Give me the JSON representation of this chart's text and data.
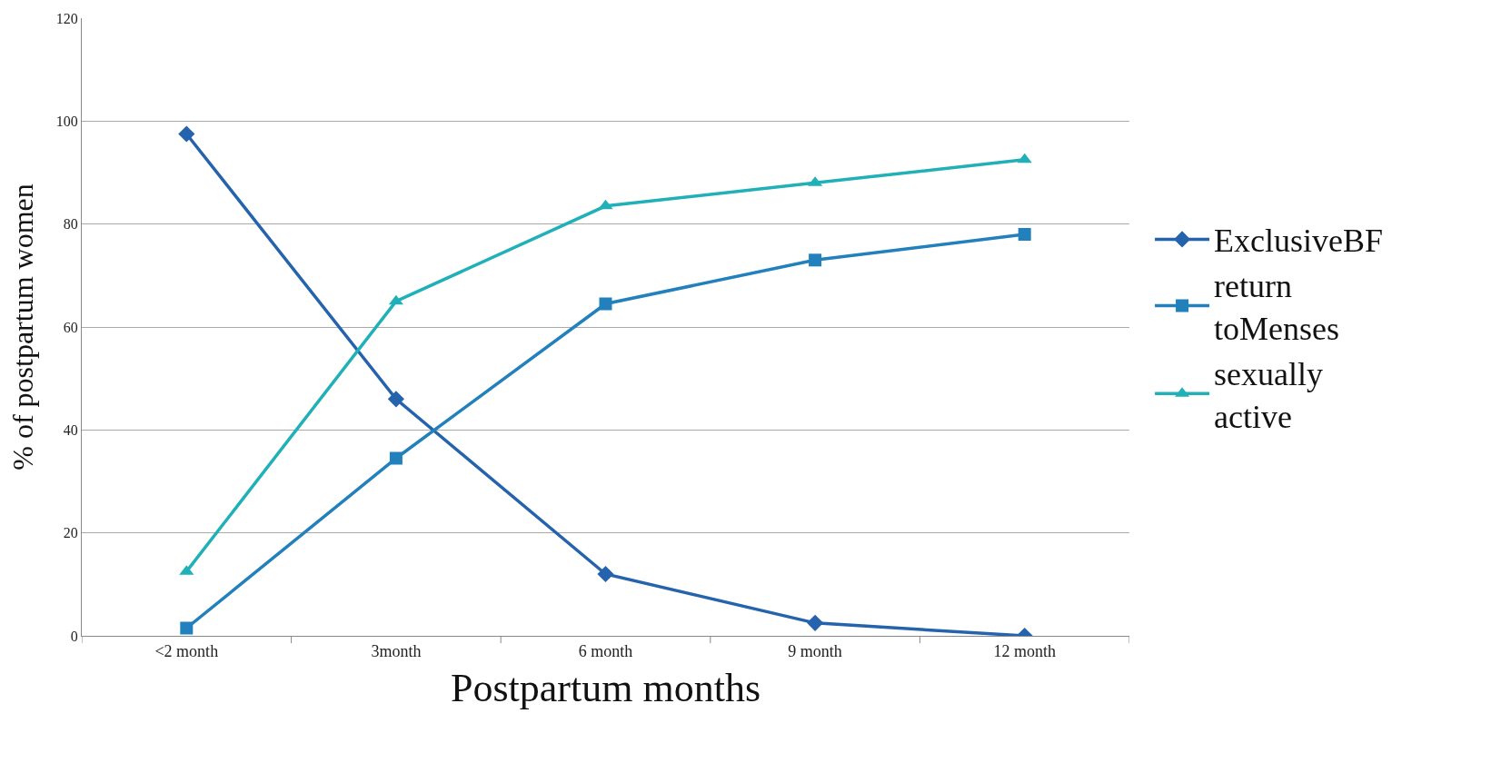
{
  "chart_data": {
    "type": "line",
    "xlabel": "Postpartum months",
    "ylabel": "% of postpartum women",
    "categories": [
      "<2 month",
      "3month",
      "6 month",
      "9 month",
      "12 month"
    ],
    "series": [
      {
        "name": "ExclusiveBF",
        "color": "#2563ad",
        "marker": "diamond",
        "values": [
          97.5,
          46,
          12,
          2.5,
          0
        ]
      },
      {
        "name": "return toMenses",
        "color": "#2280bd",
        "marker": "square",
        "values": [
          1.5,
          34.5,
          64.5,
          73,
          78
        ]
      },
      {
        "name": "sexually active",
        "color": "#20b0b8",
        "marker": "triangle",
        "values": [
          12.5,
          65,
          83.5,
          88,
          92.5
        ]
      }
    ],
    "ylim": [
      0,
      120
    ],
    "yticks": [
      0,
      20,
      40,
      60,
      80,
      100,
      120
    ],
    "grid": "y",
    "legend": "right",
    "line_style": "solid"
  }
}
